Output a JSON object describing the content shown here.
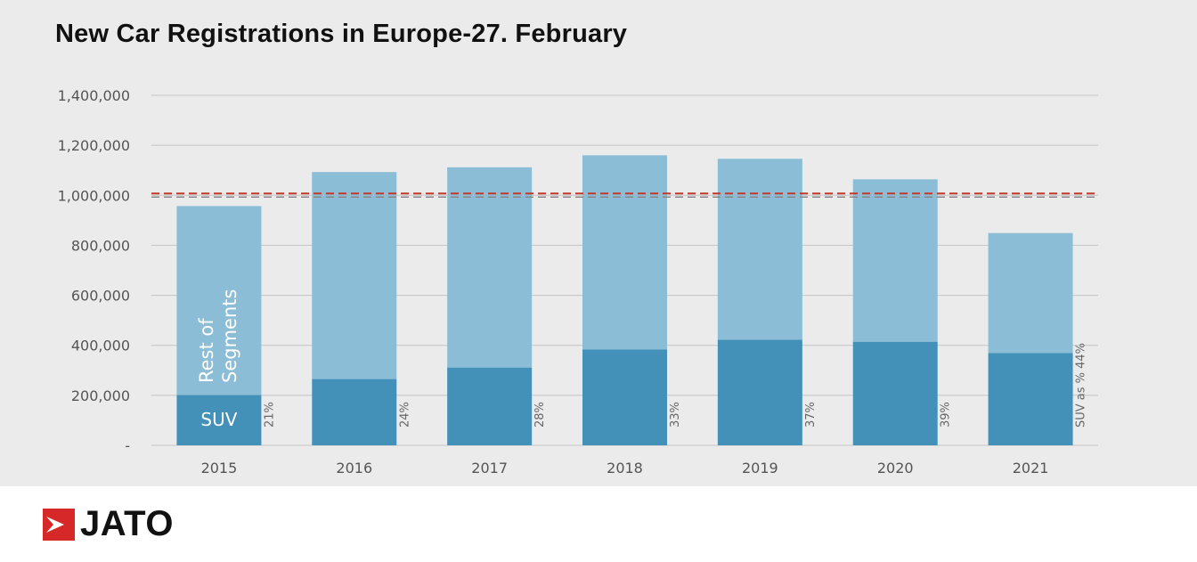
{
  "colors": {
    "panel_bg": "#ebebeb",
    "rest": "#8bbdd6",
    "suv": "#4391b8",
    "reference_line": "#c0392b",
    "gridline": "#c4c4c4"
  },
  "chart_data": {
    "type": "bar",
    "stacked": true,
    "title": "New Car Registrations in Europe-27. February",
    "categories": [
      "2015",
      "2016",
      "2017",
      "2018",
      "2019",
      "2020",
      "2021"
    ],
    "series": [
      {
        "name": "SUV",
        "values": [
          201000,
          265000,
          311000,
          383000,
          422000,
          414000,
          369000
        ]
      },
      {
        "name": "Rest of Segments",
        "values": [
          756000,
          828000,
          801000,
          777000,
          724000,
          650000,
          480000
        ]
      }
    ],
    "totals": [
      957000,
      1093000,
      1112000,
      1160000,
      1146000,
      1064000,
      849000
    ],
    "suv_share_labels": [
      "21%",
      "24%",
      "28%",
      "33%",
      "37%",
      "39%",
      "SUV as % 44%"
    ],
    "reference_line": 1000000,
    "ylim": [
      0,
      1400000
    ],
    "yticks": [
      0,
      200000,
      400000,
      600000,
      800000,
      1000000,
      1200000,
      1400000
    ],
    "ytick_labels": [
      "-",
      "200,000",
      "400,000",
      "600,000",
      "800,000",
      "1,000,000",
      "1,200,000",
      "1,400,000"
    ],
    "xlabel": "",
    "ylabel": "",
    "grid": true
  },
  "logo": {
    "text": "JATO",
    "icon": "jato-logo-icon"
  }
}
